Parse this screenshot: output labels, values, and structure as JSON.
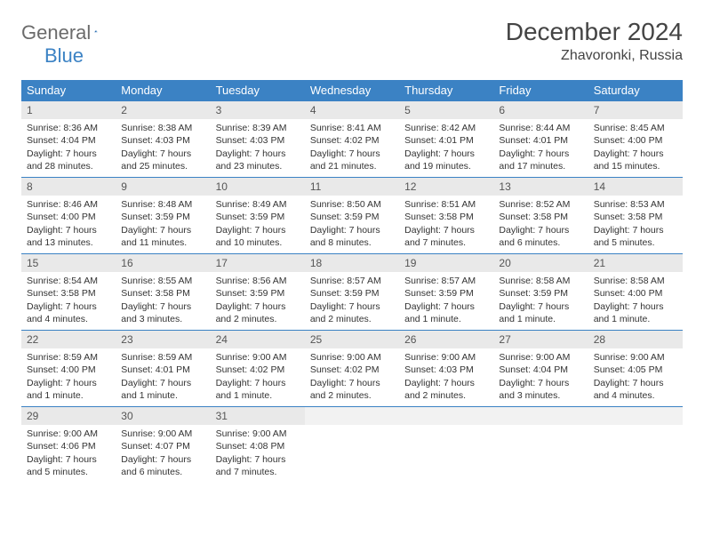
{
  "brand": {
    "part1": "General",
    "part2": "Blue"
  },
  "title": "December 2024",
  "location": "Zhavoronki, Russia",
  "colors": {
    "header_bg": "#3b82c4",
    "header_text": "#ffffff",
    "daynum_bg": "#e9e9e9",
    "border": "#3b82c4",
    "body_text": "#333333",
    "logo_gray": "#6b6b6b",
    "logo_blue": "#3b82c4"
  },
  "weekdays": [
    "Sunday",
    "Monday",
    "Tuesday",
    "Wednesday",
    "Thursday",
    "Friday",
    "Saturday"
  ],
  "days": [
    {
      "n": "1",
      "sr": "Sunrise: 8:36 AM",
      "ss": "Sunset: 4:04 PM",
      "dl1": "Daylight: 7 hours",
      "dl2": "and 28 minutes."
    },
    {
      "n": "2",
      "sr": "Sunrise: 8:38 AM",
      "ss": "Sunset: 4:03 PM",
      "dl1": "Daylight: 7 hours",
      "dl2": "and 25 minutes."
    },
    {
      "n": "3",
      "sr": "Sunrise: 8:39 AM",
      "ss": "Sunset: 4:03 PM",
      "dl1": "Daylight: 7 hours",
      "dl2": "and 23 minutes."
    },
    {
      "n": "4",
      "sr": "Sunrise: 8:41 AM",
      "ss": "Sunset: 4:02 PM",
      "dl1": "Daylight: 7 hours",
      "dl2": "and 21 minutes."
    },
    {
      "n": "5",
      "sr": "Sunrise: 8:42 AM",
      "ss": "Sunset: 4:01 PM",
      "dl1": "Daylight: 7 hours",
      "dl2": "and 19 minutes."
    },
    {
      "n": "6",
      "sr": "Sunrise: 8:44 AM",
      "ss": "Sunset: 4:01 PM",
      "dl1": "Daylight: 7 hours",
      "dl2": "and 17 minutes."
    },
    {
      "n": "7",
      "sr": "Sunrise: 8:45 AM",
      "ss": "Sunset: 4:00 PM",
      "dl1": "Daylight: 7 hours",
      "dl2": "and 15 minutes."
    },
    {
      "n": "8",
      "sr": "Sunrise: 8:46 AM",
      "ss": "Sunset: 4:00 PM",
      "dl1": "Daylight: 7 hours",
      "dl2": "and 13 minutes."
    },
    {
      "n": "9",
      "sr": "Sunrise: 8:48 AM",
      "ss": "Sunset: 3:59 PM",
      "dl1": "Daylight: 7 hours",
      "dl2": "and 11 minutes."
    },
    {
      "n": "10",
      "sr": "Sunrise: 8:49 AM",
      "ss": "Sunset: 3:59 PM",
      "dl1": "Daylight: 7 hours",
      "dl2": "and 10 minutes."
    },
    {
      "n": "11",
      "sr": "Sunrise: 8:50 AM",
      "ss": "Sunset: 3:59 PM",
      "dl1": "Daylight: 7 hours",
      "dl2": "and 8 minutes."
    },
    {
      "n": "12",
      "sr": "Sunrise: 8:51 AM",
      "ss": "Sunset: 3:58 PM",
      "dl1": "Daylight: 7 hours",
      "dl2": "and 7 minutes."
    },
    {
      "n": "13",
      "sr": "Sunrise: 8:52 AM",
      "ss": "Sunset: 3:58 PM",
      "dl1": "Daylight: 7 hours",
      "dl2": "and 6 minutes."
    },
    {
      "n": "14",
      "sr": "Sunrise: 8:53 AM",
      "ss": "Sunset: 3:58 PM",
      "dl1": "Daylight: 7 hours",
      "dl2": "and 5 minutes."
    },
    {
      "n": "15",
      "sr": "Sunrise: 8:54 AM",
      "ss": "Sunset: 3:58 PM",
      "dl1": "Daylight: 7 hours",
      "dl2": "and 4 minutes."
    },
    {
      "n": "16",
      "sr": "Sunrise: 8:55 AM",
      "ss": "Sunset: 3:58 PM",
      "dl1": "Daylight: 7 hours",
      "dl2": "and 3 minutes."
    },
    {
      "n": "17",
      "sr": "Sunrise: 8:56 AM",
      "ss": "Sunset: 3:59 PM",
      "dl1": "Daylight: 7 hours",
      "dl2": "and 2 minutes."
    },
    {
      "n": "18",
      "sr": "Sunrise: 8:57 AM",
      "ss": "Sunset: 3:59 PM",
      "dl1": "Daylight: 7 hours",
      "dl2": "and 2 minutes."
    },
    {
      "n": "19",
      "sr": "Sunrise: 8:57 AM",
      "ss": "Sunset: 3:59 PM",
      "dl1": "Daylight: 7 hours",
      "dl2": "and 1 minute."
    },
    {
      "n": "20",
      "sr": "Sunrise: 8:58 AM",
      "ss": "Sunset: 3:59 PM",
      "dl1": "Daylight: 7 hours",
      "dl2": "and 1 minute."
    },
    {
      "n": "21",
      "sr": "Sunrise: 8:58 AM",
      "ss": "Sunset: 4:00 PM",
      "dl1": "Daylight: 7 hours",
      "dl2": "and 1 minute."
    },
    {
      "n": "22",
      "sr": "Sunrise: 8:59 AM",
      "ss": "Sunset: 4:00 PM",
      "dl1": "Daylight: 7 hours",
      "dl2": "and 1 minute."
    },
    {
      "n": "23",
      "sr": "Sunrise: 8:59 AM",
      "ss": "Sunset: 4:01 PM",
      "dl1": "Daylight: 7 hours",
      "dl2": "and 1 minute."
    },
    {
      "n": "24",
      "sr": "Sunrise: 9:00 AM",
      "ss": "Sunset: 4:02 PM",
      "dl1": "Daylight: 7 hours",
      "dl2": "and 1 minute."
    },
    {
      "n": "25",
      "sr": "Sunrise: 9:00 AM",
      "ss": "Sunset: 4:02 PM",
      "dl1": "Daylight: 7 hours",
      "dl2": "and 2 minutes."
    },
    {
      "n": "26",
      "sr": "Sunrise: 9:00 AM",
      "ss": "Sunset: 4:03 PM",
      "dl1": "Daylight: 7 hours",
      "dl2": "and 2 minutes."
    },
    {
      "n": "27",
      "sr": "Sunrise: 9:00 AM",
      "ss": "Sunset: 4:04 PM",
      "dl1": "Daylight: 7 hours",
      "dl2": "and 3 minutes."
    },
    {
      "n": "28",
      "sr": "Sunrise: 9:00 AM",
      "ss": "Sunset: 4:05 PM",
      "dl1": "Daylight: 7 hours",
      "dl2": "and 4 minutes."
    },
    {
      "n": "29",
      "sr": "Sunrise: 9:00 AM",
      "ss": "Sunset: 4:06 PM",
      "dl1": "Daylight: 7 hours",
      "dl2": "and 5 minutes."
    },
    {
      "n": "30",
      "sr": "Sunrise: 9:00 AM",
      "ss": "Sunset: 4:07 PM",
      "dl1": "Daylight: 7 hours",
      "dl2": "and 6 minutes."
    },
    {
      "n": "31",
      "sr": "Sunrise: 9:00 AM",
      "ss": "Sunset: 4:08 PM",
      "dl1": "Daylight: 7 hours",
      "dl2": "and 7 minutes."
    }
  ]
}
